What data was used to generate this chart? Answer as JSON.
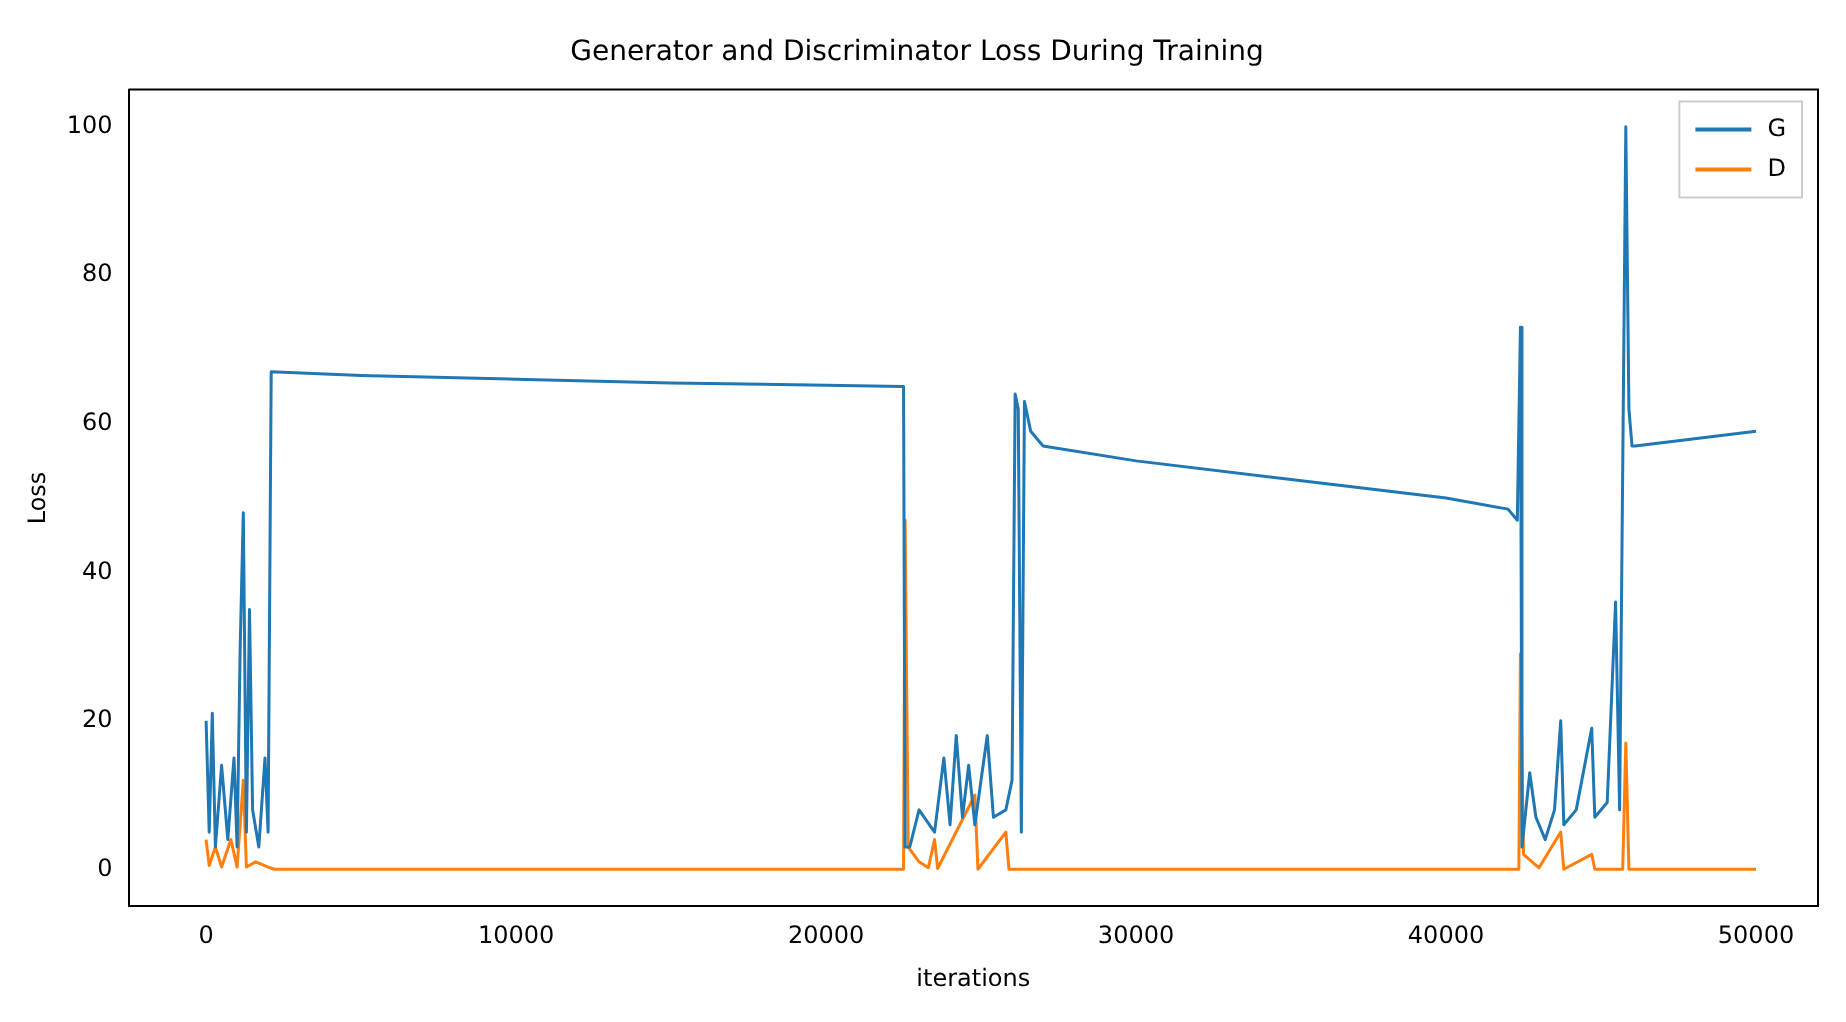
{
  "chart_data": {
    "type": "line",
    "title": "Generator and Discriminator Loss During Training",
    "xlabel": "iterations",
    "ylabel": "Loss",
    "xlim": [
      -2500,
      52000
    ],
    "xticks": [
      0,
      10000,
      20000,
      30000,
      40000,
      50000
    ],
    "ylim": [
      -5,
      105
    ],
    "yticks": [
      0,
      20,
      40,
      60,
      80,
      100
    ],
    "grid": false,
    "legend": "top right",
    "marker": "none",
    "line_style": "solid",
    "series": [
      {
        "name": "G",
        "color": "#1f77b4",
        "x": [
          0,
          100,
          200,
          300,
          500,
          700,
          900,
          1000,
          1100,
          1200,
          1300,
          1400,
          1500,
          1700,
          1900,
          2000,
          2100,
          5000,
          10000,
          15000,
          20000,
          22500,
          22550,
          22700,
          23000,
          23500,
          23800,
          24000,
          24200,
          24400,
          24600,
          24800,
          25200,
          25400,
          25800,
          26000,
          26100,
          26200,
          26300,
          26400,
          26600,
          27000,
          30000,
          35000,
          40000,
          42000,
          42300,
          42400,
          42450,
          42700,
          42900,
          43200,
          43500,
          43700,
          43800,
          44200,
          44700,
          44800,
          45200,
          45470,
          45600,
          45800,
          45900,
          46000,
          46100,
          50000
        ],
        "values": [
          20,
          5,
          21,
          3,
          14,
          4,
          15,
          3,
          30,
          48,
          5,
          35,
          8,
          3,
          15,
          5,
          67,
          66.5,
          66,
          65.5,
          65.2,
          65,
          3,
          3,
          8,
          5,
          15,
          6,
          18,
          7,
          14,
          6,
          18,
          7,
          8,
          12,
          64,
          62,
          5,
          63,
          59,
          57,
          55,
          52.5,
          50,
          48.5,
          47,
          73,
          3,
          13,
          7,
          4,
          8,
          20,
          6,
          8,
          19,
          7,
          9,
          36,
          8,
          100,
          62,
          57,
          57,
          59
        ]
      },
      {
        "name": "D",
        "color": "#ff7f0e",
        "x": [
          0,
          100,
          300,
          500,
          800,
          1000,
          1200,
          1300,
          1600,
          2000,
          2200,
          22500,
          22550,
          22650,
          23000,
          23300,
          23500,
          23600,
          24800,
          24900,
          25800,
          25900,
          42350,
          42400,
          42500,
          43000,
          43700,
          43800,
          44700,
          44800,
          45700,
          45800,
          45900,
          50000
        ],
        "values": [
          4,
          0.5,
          3,
          0.3,
          4,
          0.3,
          12,
          0.3,
          1,
          0.3,
          0,
          0,
          47,
          3,
          1,
          0.2,
          4,
          0.1,
          10,
          0,
          5,
          0,
          0,
          29,
          2,
          0.2,
          5,
          0,
          2,
          0,
          0,
          17,
          0,
          0
        ]
      }
    ]
  }
}
